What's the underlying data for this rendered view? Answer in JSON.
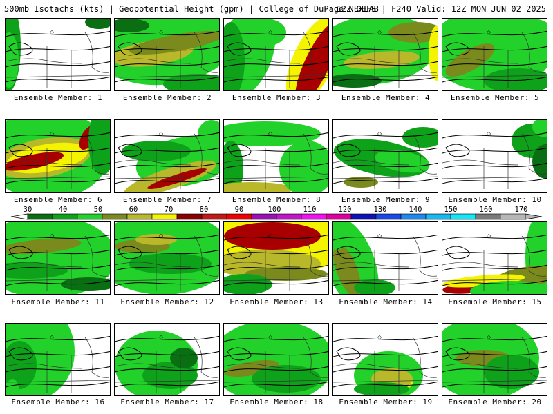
{
  "header": {
    "left": "500mb Isotachs (kts) | Geopotential Height (gpm) | College of DuPage NEXLAB",
    "right": "12Z GEFS | F240 Valid: 12Z MON JUN 02 2025"
  },
  "legend": {
    "labels": [
      "30",
      "40",
      "50",
      "60",
      "70",
      "80",
      "90",
      "100",
      "110",
      "120",
      "130",
      "140",
      "150",
      "160",
      "170"
    ],
    "colors": [
      "#0a6e12",
      "#0ea21a",
      "#22d22a",
      "#7b8a1c",
      "#b9b82a",
      "#f4f400",
      "#8b0000",
      "#c41818",
      "#f20000",
      "#9b10b5",
      "#c015c8",
      "#f010f0",
      "#e000a0",
      "#1010b8",
      "#1848e8",
      "#1c88f0",
      "#18b8f4",
      "#10e8f8",
      "#7a7a7a",
      "#b6b6b6"
    ]
  },
  "panels": [
    {
      "caption": "Ensemble Member: 1"
    },
    {
      "caption": "Ensemble Member: 2"
    },
    {
      "caption": "Ensemble Member: 3"
    },
    {
      "caption": "Ensemble Member: 4"
    },
    {
      "caption": "Ensemble Member: 5"
    },
    {
      "caption": "Ensemble Member: 6"
    },
    {
      "caption": "Ensemble Member: 7"
    },
    {
      "caption": "Ensemble Member: 8"
    },
    {
      "caption": "Ensemble Member: 9"
    },
    {
      "caption": "Ensemble Member: 10"
    },
    {
      "caption": "Ensemble Member: 11"
    },
    {
      "caption": "Ensemble Member: 12"
    },
    {
      "caption": "Ensemble Member: 13"
    },
    {
      "caption": "Ensemble Member: 14"
    },
    {
      "caption": "Ensemble Member: 15"
    },
    {
      "caption": "Ensemble Member: 16"
    },
    {
      "caption": "Ensemble Member: 17"
    },
    {
      "caption": "Ensemble Member: 18"
    },
    {
      "caption": "Ensemble Member: 19"
    },
    {
      "caption": "Ensemble Member: 20"
    }
  ]
}
